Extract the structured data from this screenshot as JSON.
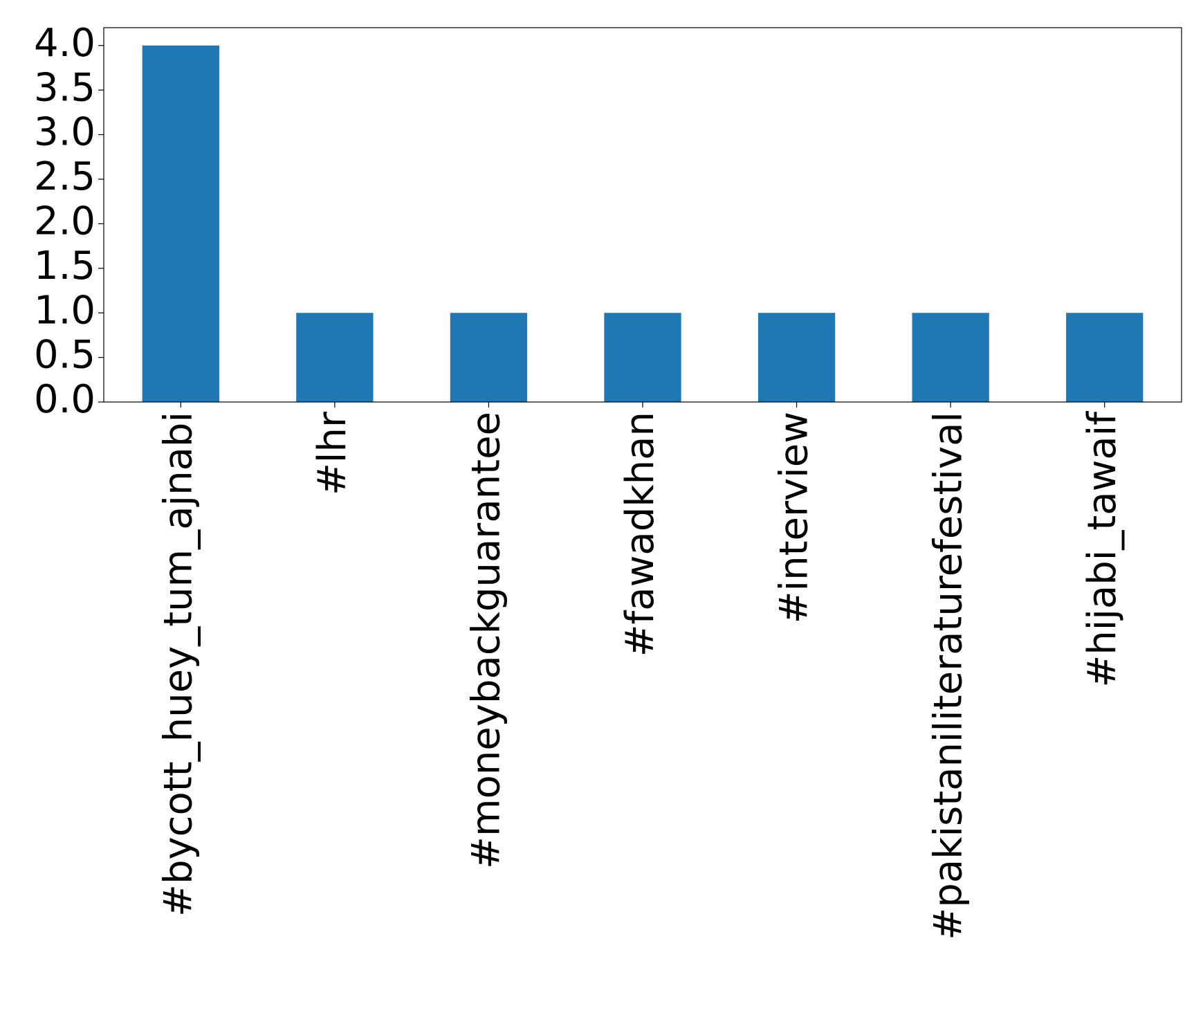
{
  "chart_data": {
    "type": "bar",
    "categories": [
      "#bycott_huey_tum_ajnabi",
      "#lhr",
      "#moneybackguarantee",
      "#fawadkhan",
      "#interview",
      "#pakistaniliteraturefestival",
      "#hijabi_tawaif"
    ],
    "values": [
      4,
      1,
      1,
      1,
      1,
      1,
      1
    ],
    "color": "#1f77b4",
    "ylim": [
      0,
      4.2
    ],
    "yticks": [
      {
        "value": 0,
        "label": "0.0"
      },
      {
        "value": 0.5,
        "label": "0.5"
      },
      {
        "value": 1,
        "label": "1.0"
      },
      {
        "value": 1.5,
        "label": "1.5"
      },
      {
        "value": 2,
        "label": "2.0"
      },
      {
        "value": 2.5,
        "label": "2.5"
      },
      {
        "value": 3,
        "label": "3.0"
      },
      {
        "value": 3.5,
        "label": "3.5"
      },
      {
        "value": 4,
        "label": "4.0"
      }
    ],
    "grid": false
  }
}
